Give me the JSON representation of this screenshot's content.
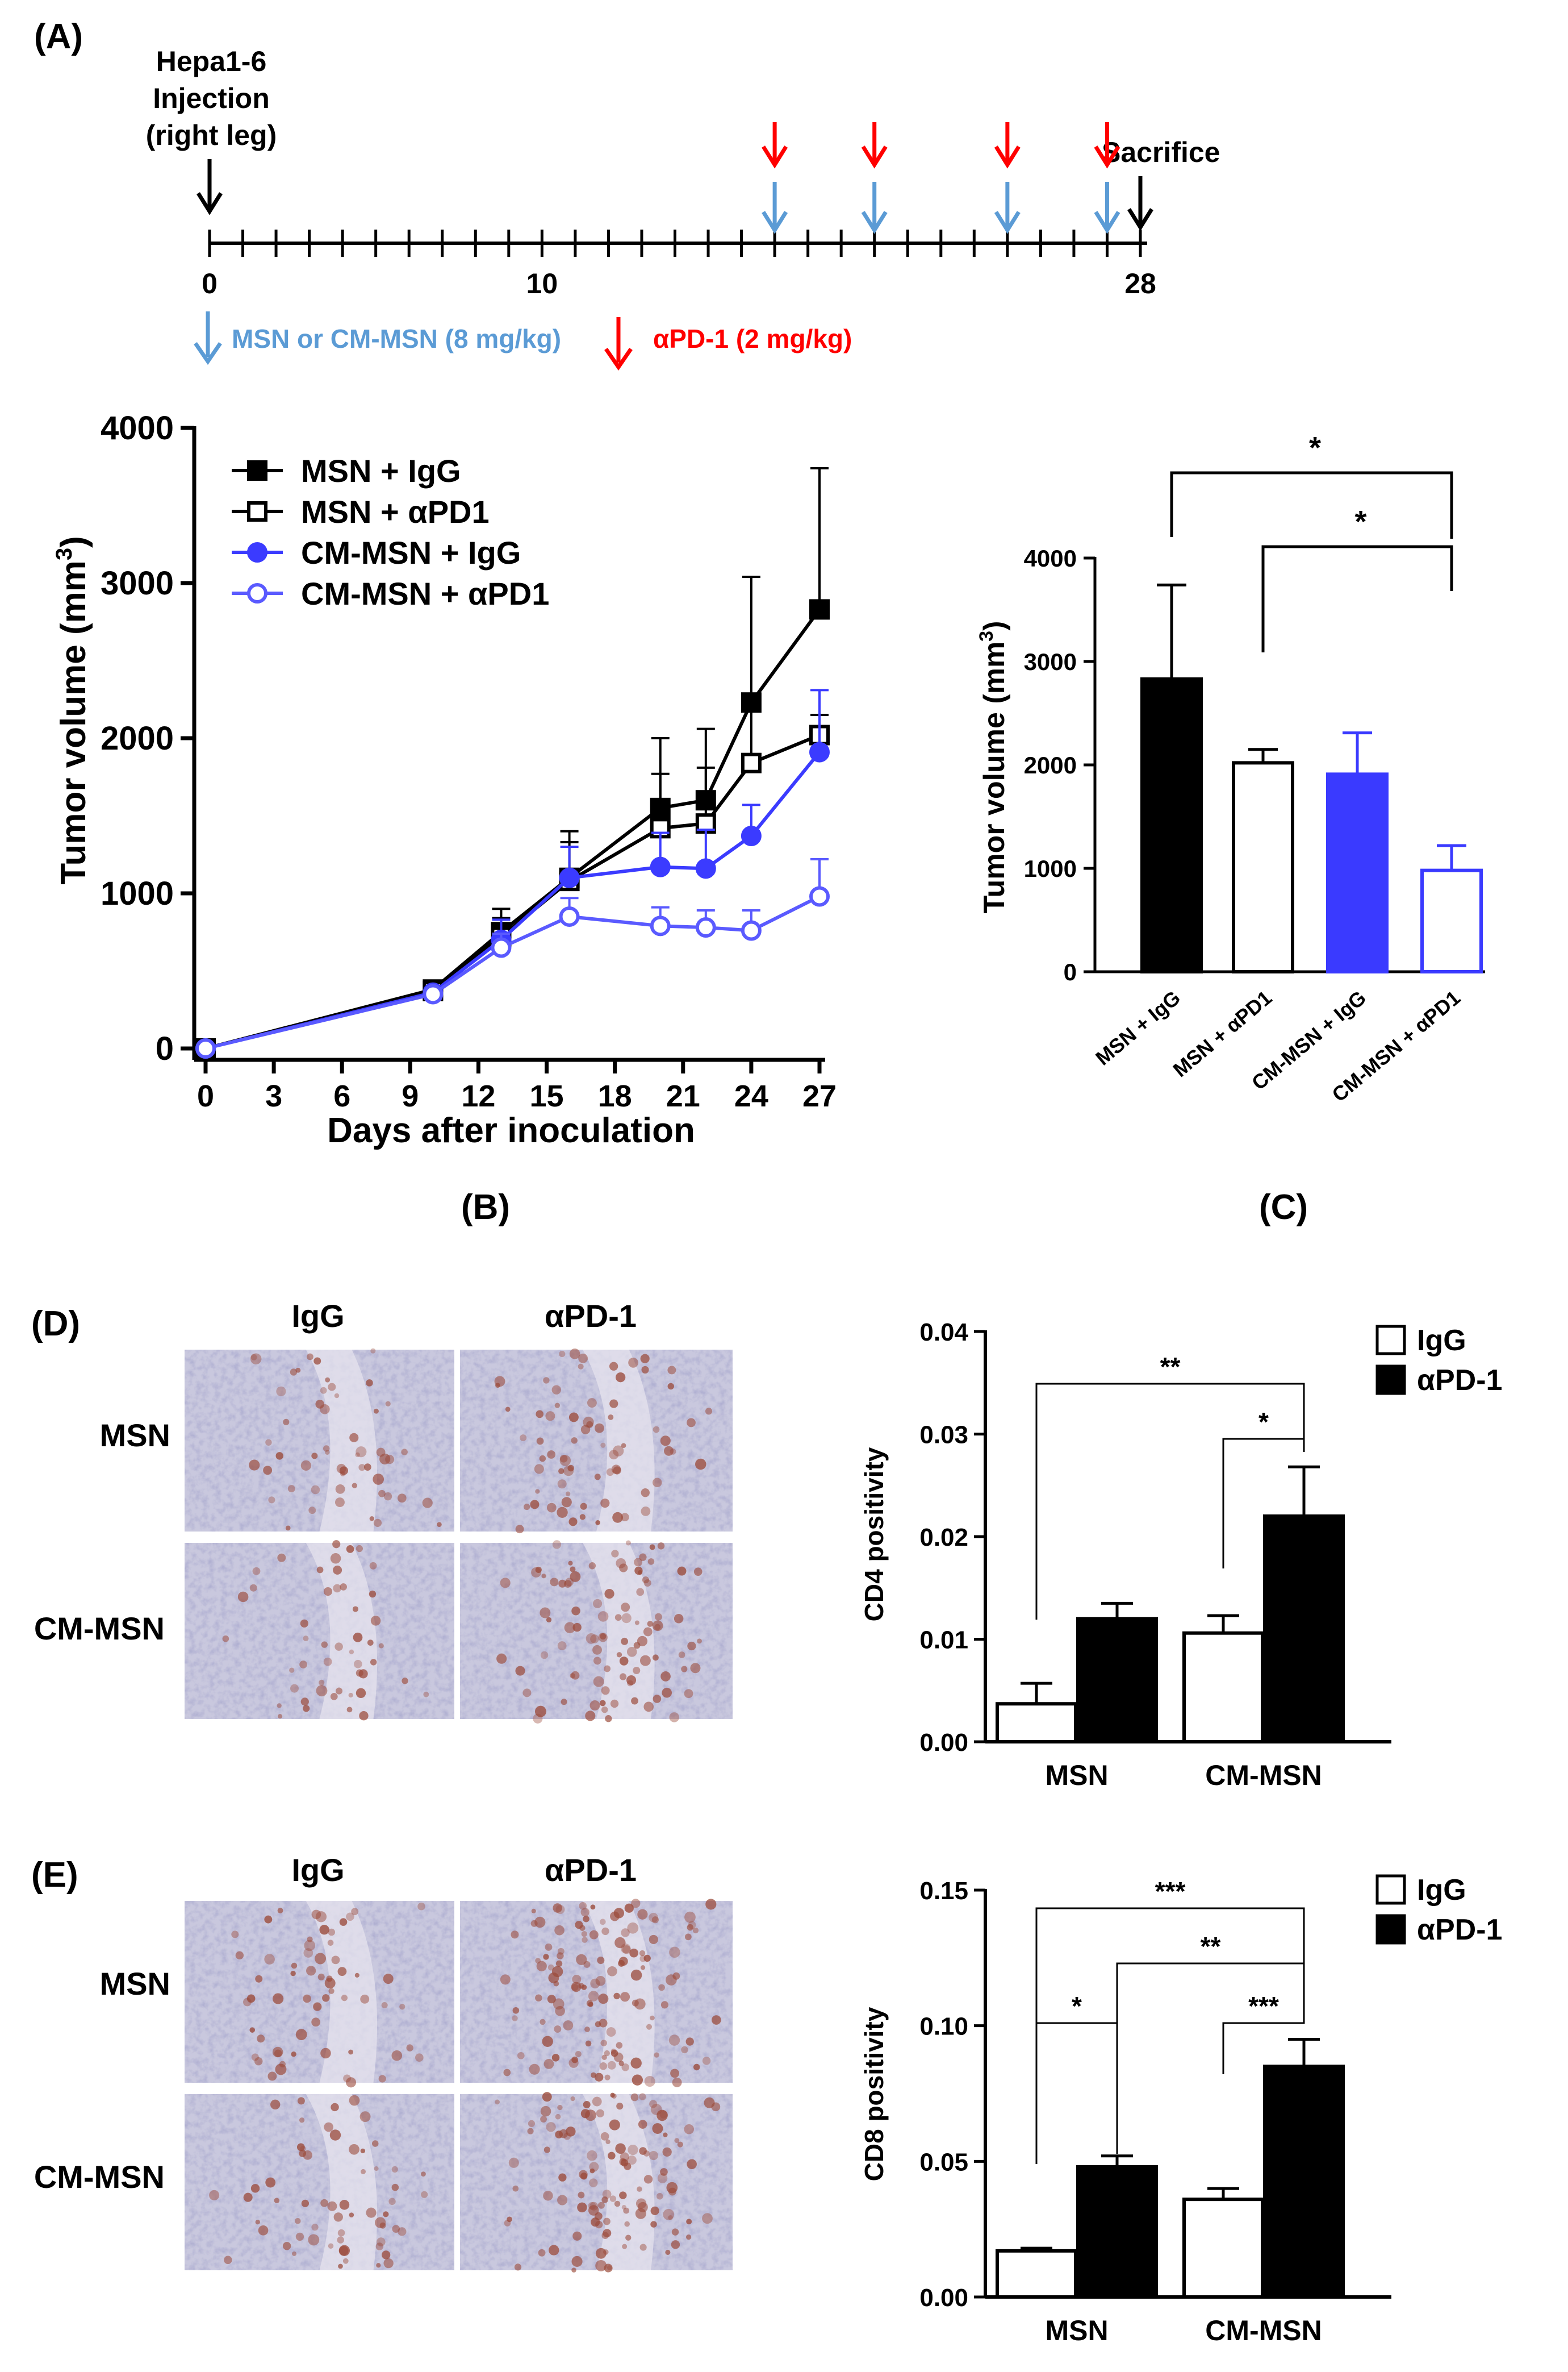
{
  "figure_labels": {
    "A": "(A)",
    "B": "(B)",
    "C": "(C)",
    "D": "(D)",
    "E": "(E)"
  },
  "colors": {
    "black": "#000000",
    "blue_arrow": "#5b9bd5",
    "red_arrow": "#ff0000",
    "blue_series": "#3b3bff",
    "light_blue_series": "#5a5aff",
    "bar_blue": "#3a3aff",
    "blue_text": "#5b9bd5",
    "red_text": "#ff0000"
  },
  "panel_a": {
    "injection_label": [
      "Hepa1-6",
      "Injection",
      "(right leg)"
    ],
    "sacrifice_label": "Sacrifice",
    "axis_ticks": [
      "0",
      "10",
      "28"
    ],
    "axis_tick_days": [
      0,
      10,
      28
    ],
    "axis_max_day": 28,
    "injection_day": 0,
    "sacrifice_day": 28,
    "treatment_days": [
      17,
      20,
      24,
      27
    ],
    "legend_msn": "MSN or CM-MSN (8 mg/kg)",
    "legend_apd1": "αPD-1 (2 mg/kg)"
  },
  "chart_data": [
    {
      "id": "B",
      "type": "line",
      "title": "",
      "xlabel": "Days after inoculation",
      "ylabel": "Tumor volume (mm",
      "ylabel_sup": "3",
      "ylabel_close": ")",
      "x": [
        0,
        10,
        13,
        16,
        20,
        22,
        24,
        27
      ],
      "xticks": [
        0,
        3,
        6,
        9,
        12,
        15,
        18,
        21,
        24,
        27
      ],
      "xtick_labels": [
        "0",
        "3",
        "6",
        "9",
        "12",
        "15",
        "18",
        "21",
        "24",
        "27"
      ],
      "xlim": [
        0,
        27
      ],
      "ylim": [
        0,
        4000
      ],
      "yticks": [
        0,
        1000,
        2000,
        3000,
        4000
      ],
      "ytick_labels": [
        "0",
        "1000",
        "2000",
        "3000",
        "4000"
      ],
      "legend_position": "top-left",
      "series": [
        {
          "name": "MSN + IgG",
          "marker": "filled-square",
          "color": "#000000",
          "values": [
            0,
            380,
            750,
            1100,
            1550,
            1600,
            2230,
            2830
          ],
          "errors": [
            0,
            30,
            150,
            300,
            450,
            460,
            810,
            910
          ]
        },
        {
          "name": "MSN + αPD1",
          "marker": "open-square",
          "color": "#000000",
          "values": [
            0,
            370,
            720,
            1080,
            1420,
            1450,
            1840,
            2020
          ],
          "errors": [
            0,
            30,
            120,
            250,
            350,
            360,
            400,
            130
          ]
        },
        {
          "name": "CM-MSN + IgG",
          "marker": "filled-circle",
          "color": "#3b3bff",
          "values": [
            0,
            360,
            700,
            1100,
            1170,
            1160,
            1370,
            1910
          ],
          "errors": [
            0,
            30,
            130,
            200,
            220,
            250,
            200,
            400
          ]
        },
        {
          "name": "CM-MSN + αPD1",
          "marker": "open-circle",
          "color": "#5a5aff",
          "values": [
            0,
            350,
            650,
            850,
            790,
            780,
            760,
            980
          ],
          "errors": [
            0,
            30,
            90,
            120,
            120,
            110,
            130,
            240
          ]
        }
      ]
    },
    {
      "id": "C",
      "type": "bar",
      "title": "",
      "xlabel": "",
      "ylabel": "Tumor volume (mm",
      "ylabel_sup": "3",
      "ylabel_close": ")",
      "categories": [
        "MSN + IgG",
        "MSN + αPD1",
        "CM-MSN + IgG",
        "CM-MSN + αPD1"
      ],
      "values": [
        2830,
        2020,
        1910,
        980
      ],
      "errors": [
        910,
        130,
        400,
        240
      ],
      "ylim": [
        0,
        4000
      ],
      "yticks": [
        0,
        1000,
        2000,
        3000,
        4000
      ],
      "ytick_labels": [
        "0",
        "1000",
        "2000",
        "3000",
        "4000"
      ],
      "bar_styles": [
        "filled-black",
        "open-black",
        "filled-blue",
        "open-blue"
      ],
      "significance": [
        {
          "from": 0,
          "to": 3,
          "label": "*"
        },
        {
          "from": 1,
          "to": 3,
          "label": "*"
        }
      ]
    },
    {
      "id": "D",
      "type": "bar",
      "title": "",
      "xlabel": "",
      "ylabel": "CD4 positivity",
      "categories": [
        "MSN",
        "CM-MSN"
      ],
      "series": [
        {
          "name": "IgG",
          "style": "open",
          "values": [
            0.0037,
            0.0106
          ],
          "errors": [
            0.002,
            0.0017
          ]
        },
        {
          "name": "αPD-1",
          "style": "filled",
          "values": [
            0.012,
            0.022
          ],
          "errors": [
            0.0015,
            0.0048
          ]
        }
      ],
      "ylim": [
        0,
        0.04
      ],
      "yticks": [
        0,
        0.01,
        0.02,
        0.03,
        0.04
      ],
      "ytick_labels": [
        "0.00",
        "0.01",
        "0.02",
        "0.03",
        "0.04"
      ],
      "legend_position": "top-right",
      "significance": [
        {
          "from": "MSN-IgG",
          "to": "CM-MSN-αPD-1",
          "label": "**"
        },
        {
          "from": "CM-MSN-IgG",
          "to": "CM-MSN-αPD-1",
          "label": "*"
        }
      ]
    },
    {
      "id": "E",
      "type": "bar",
      "title": "",
      "xlabel": "",
      "ylabel": "CD8 positivity",
      "categories": [
        "MSN",
        "CM-MSN"
      ],
      "series": [
        {
          "name": "IgG",
          "style": "open",
          "values": [
            0.017,
            0.036
          ],
          "errors": [
            0.001,
            0.004
          ]
        },
        {
          "name": "αPD-1",
          "style": "filled",
          "values": [
            0.048,
            0.085
          ],
          "errors": [
            0.004,
            0.01
          ]
        }
      ],
      "ylim": [
        0,
        0.15
      ],
      "yticks": [
        0,
        0.05,
        0.1,
        0.15
      ],
      "ytick_labels": [
        "0.00",
        "0.05",
        "0.10",
        "0.15"
      ],
      "legend_position": "top-right",
      "significance": [
        {
          "from": "MSN-IgG",
          "to": "CM-MSN-αPD-1",
          "label": "***"
        },
        {
          "from": "MSN-αPD-1",
          "to": "CM-MSN-αPD-1",
          "label": "**"
        },
        {
          "from": "MSN-IgG",
          "to": "MSN-αPD-1",
          "label": "*"
        },
        {
          "from": "CM-MSN-IgG",
          "to": "CM-MSN-αPD-1",
          "label": "***"
        }
      ]
    }
  ],
  "ihc": {
    "col_labels": [
      "IgG",
      "αPD-1"
    ],
    "row_labels": [
      "MSN",
      "CM-MSN"
    ]
  }
}
